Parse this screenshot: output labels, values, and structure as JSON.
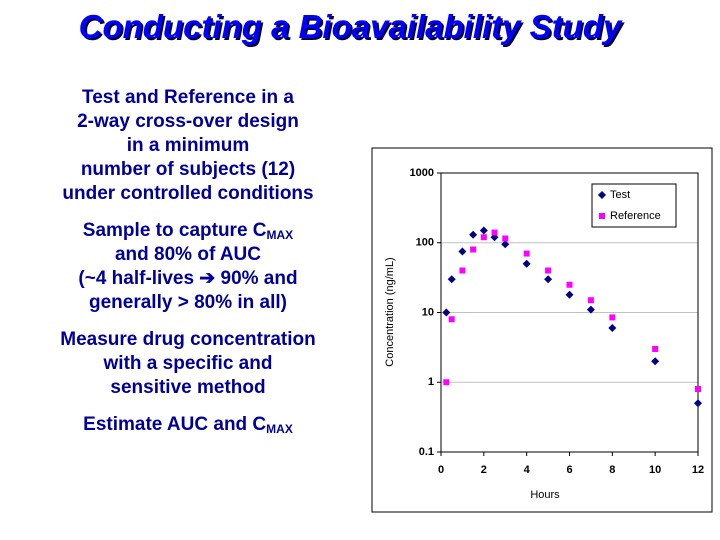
{
  "header": {
    "title": "Conducting a Bioavailability Study"
  },
  "bullets": [
    {
      "lines": [
        "Test and Reference in a",
        "2-way cross-over design",
        "in a minimum",
        "number of subjects (12)",
        "under controlled conditions"
      ]
    },
    {
      "lines": [
        {
          "text": "Sample to capture C",
          "sub": "MAX"
        },
        "and 80% of AUC",
        "(~4 half-lives ➔ 90% and",
        "generally > 80% in all)"
      ]
    },
    {
      "lines": [
        "Measure drug concentration",
        "with a specific and",
        "sensitive method"
      ]
    },
    {
      "lines": [
        {
          "text": "Estimate AUC and C",
          "sub": "MAX"
        }
      ]
    }
  ],
  "chart_data": {
    "type": "scatter",
    "x_label": "Hours",
    "y_label": "Concentration (ng/mL)",
    "x": [
      0.25,
      0.5,
      1,
      1.5,
      2,
      2.5,
      3,
      4,
      5,
      6,
      7,
      8,
      10,
      12
    ],
    "series": [
      {
        "name": "Test",
        "color": "#000080",
        "marker": "diamond",
        "values": [
          10,
          30,
          75,
          130,
          150,
          120,
          95,
          50,
          30,
          18,
          11,
          6,
          2,
          0.5
        ]
      },
      {
        "name": "Reference",
        "color": "#ff00ff",
        "marker": "square",
        "values": [
          1,
          8,
          40,
          80,
          120,
          140,
          115,
          70,
          40,
          25,
          15,
          8.5,
          3,
          0.8
        ]
      }
    ],
    "xlim": [
      0,
      12
    ],
    "xticks": [
      0,
      2,
      4,
      6,
      8,
      10,
      12
    ],
    "ylim": [
      0.1,
      1000
    ],
    "yticks": [
      0.1,
      1,
      10,
      100,
      1000
    ],
    "log_y": true,
    "grid": true,
    "legend": "upper right"
  }
}
